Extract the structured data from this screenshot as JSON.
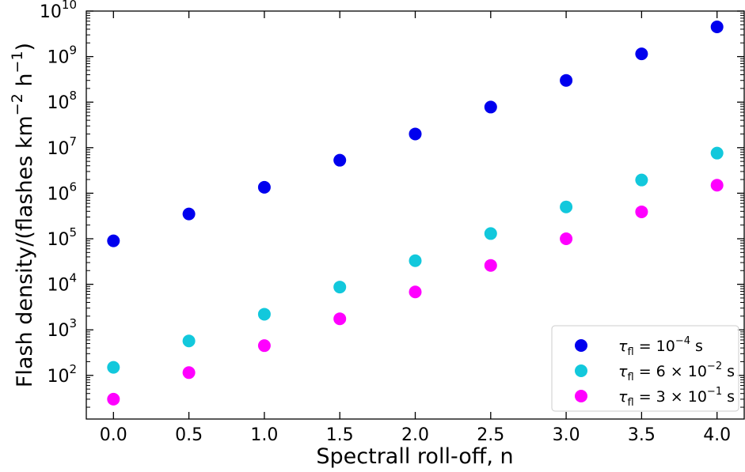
{
  "chart_data": {
    "type": "scatter",
    "xlabel": "Spectrall roll-off, n",
    "ylabel": "Flash density/(flashes km⁻² h⁻¹)",
    "xlim": [
      -0.18,
      4.18
    ],
    "ylim": [
      11,
      10000000000
    ],
    "yscale": "log",
    "x_ticks": [
      0.0,
      0.5,
      1.0,
      1.5,
      2.0,
      2.5,
      3.0,
      3.5,
      4.0
    ],
    "x_tick_labels": [
      "0.0",
      "0.5",
      "1.0",
      "1.5",
      "2.0",
      "2.5",
      "3.0",
      "3.5",
      "4.0"
    ],
    "y_ticks": [
      100,
      1000,
      10000,
      100000,
      1000000,
      10000000,
      100000000,
      1000000000,
      10000000000
    ],
    "y_tick_exponents": [
      "2",
      "3",
      "4",
      "5",
      "6",
      "7",
      "8",
      "9",
      "10"
    ],
    "y_tick_base": "10",
    "grid": false,
    "legend_position": "bottom-right",
    "x": [
      0.0,
      0.5,
      1.0,
      1.5,
      2.0,
      2.5,
      3.0,
      3.5,
      4.0
    ],
    "series": [
      {
        "name": "τfl = 10⁻⁴ s",
        "color": "#0000ee",
        "values": [
          90000,
          350000,
          1350000,
          5300000,
          20000000,
          78000000,
          300000000,
          1150000000,
          4500000000
        ]
      },
      {
        "name": "τfl = 6 × 10⁻² s",
        "color": "#12c8dc",
        "values": [
          150,
          570,
          2200,
          8700,
          33000,
          130000,
          500000,
          1950000,
          7600000
        ]
      },
      {
        "name": "τfl = 3 × 10⁻¹ s",
        "color": "#ff00ff",
        "values": [
          30,
          115,
          450,
          1750,
          6800,
          26000,
          100000,
          390000,
          1500000
        ]
      }
    ]
  },
  "legend": [
    {
      "prefix": "τ",
      "sub": "fl",
      "main": " = ",
      "mantissa": "",
      "exp": "−4",
      "unit": " s"
    },
    {
      "prefix": "τ",
      "sub": "fl",
      "main": " = 6 × ",
      "mantissa": "",
      "exp": "−2",
      "unit": " s"
    },
    {
      "prefix": "τ",
      "sub": "fl",
      "main": " = 3 × ",
      "mantissa": "",
      "exp": "−1",
      "unit": " s"
    }
  ]
}
